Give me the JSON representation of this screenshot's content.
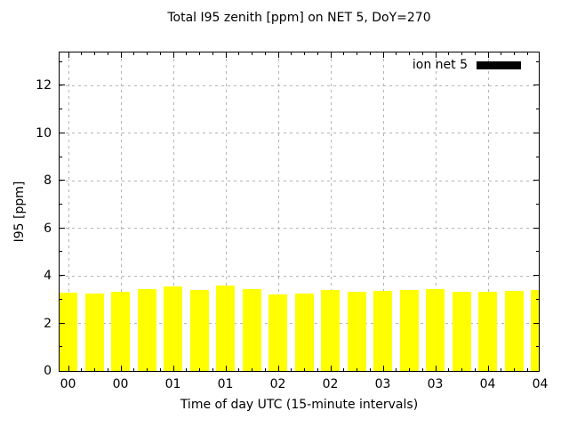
{
  "chart_data": {
    "type": "bar",
    "title": "Total I95 zenith [ppm] on NET 5, DoY=270",
    "xlabel": "Time of day UTC (15-minute intervals)",
    "ylabel": "I95 [ppm]",
    "legend": [
      {
        "label": "ion net 5",
        "color": "#000000"
      }
    ],
    "legend_position": "top-right",
    "grid": true,
    "bar_color": "#ffff00",
    "x": [
      "00:00",
      "00:15",
      "00:30",
      "00:45",
      "01:00",
      "01:15",
      "01:30",
      "01:45",
      "02:00",
      "02:15",
      "02:30",
      "02:45",
      "03:00",
      "03:15",
      "03:30",
      "03:45",
      "04:00",
      "04:15",
      "04:30"
    ],
    "values": [
      3.28,
      3.25,
      3.34,
      3.43,
      3.55,
      3.4,
      3.6,
      3.44,
      3.22,
      3.24,
      3.4,
      3.34,
      3.37,
      3.41,
      3.43,
      3.34,
      3.34,
      3.38,
      3.41
    ],
    "xtick_labels": [
      "00",
      "00",
      "01",
      "01",
      "02",
      "02",
      "03",
      "03",
      "04",
      "04"
    ],
    "ytick_values": [
      0,
      2,
      4,
      6,
      8,
      10,
      12
    ],
    "ylim": [
      0,
      13.4
    ],
    "xlim_minutes": [
      -5,
      270
    ]
  },
  "colors": {
    "bar": "#ffff00",
    "grid": "#b4b4b4",
    "axis": "#000000",
    "background": "#ffffff",
    "legend_swatch": "#000000"
  }
}
